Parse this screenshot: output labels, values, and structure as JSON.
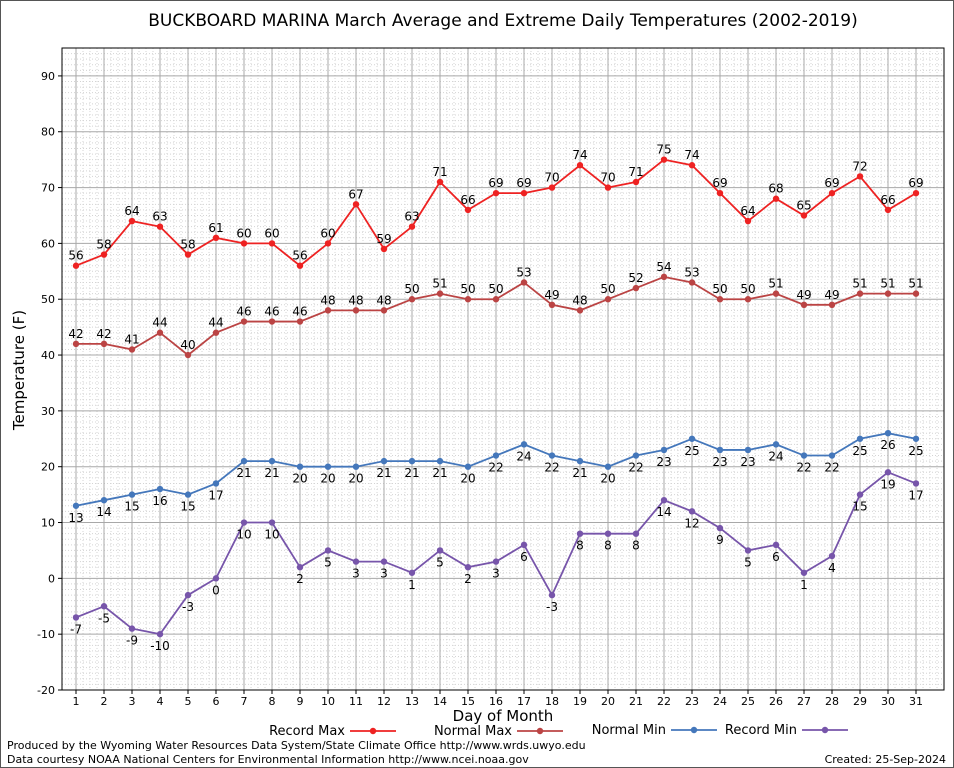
{
  "chart_data": {
    "type": "line",
    "title": "BUCKBOARD MARINA March Average and Extreme Daily Temperatures (2002-2019)",
    "xlabel": "Day of Month",
    "ylabel": "Temperature (F)",
    "ylim": [
      -20,
      95
    ],
    "yticks": [
      -20,
      -10,
      0,
      10,
      20,
      30,
      40,
      50,
      60,
      70,
      80,
      90
    ],
    "x": [
      1,
      2,
      3,
      4,
      5,
      6,
      7,
      8,
      9,
      10,
      11,
      12,
      13,
      14,
      15,
      16,
      17,
      18,
      19,
      20,
      21,
      22,
      23,
      24,
      25,
      26,
      27,
      28,
      29,
      30,
      31
    ],
    "grid": true,
    "legend_position": "bottom",
    "series": [
      {
        "name": "Record Max",
        "color": "#ee2222",
        "label_position": "above",
        "values": [
          56,
          58,
          64,
          63,
          58,
          61,
          60,
          60,
          56,
          60,
          67,
          59,
          63,
          71,
          66,
          69,
          69,
          70,
          74,
          70,
          71,
          75,
          74,
          69,
          64,
          68,
          65,
          69,
          72,
          66,
          69
        ]
      },
      {
        "name": "Normal Max",
        "color": "#bb4444",
        "label_position": "above",
        "values": [
          42,
          42,
          41,
          44,
          40,
          44,
          46,
          46,
          46,
          48,
          48,
          48,
          50,
          51,
          50,
          50,
          53,
          49,
          48,
          50,
          52,
          54,
          53,
          50,
          50,
          51,
          49,
          49,
          51,
          51,
          51
        ]
      },
      {
        "name": "Normal Min",
        "color": "#4477bb",
        "label_position": "below",
        "values": [
          13,
          14,
          15,
          16,
          15,
          17,
          21,
          21,
          20,
          20,
          20,
          21,
          21,
          21,
          20,
          22,
          24,
          22,
          21,
          20,
          22,
          23,
          25,
          23,
          23,
          24,
          22,
          22,
          25,
          26,
          25
        ]
      },
      {
        "name": "Record Min",
        "color": "#7755aa",
        "label_position": "below",
        "values": [
          -7,
          -5,
          -9,
          -10,
          -3,
          0,
          10,
          10,
          2,
          5,
          3,
          3,
          1,
          5,
          2,
          3,
          6,
          -3,
          8,
          8,
          8,
          14,
          12,
          9,
          5,
          6,
          1,
          4,
          15,
          19,
          17
        ]
      }
    ]
  },
  "footer": {
    "produced_by": "Produced by the Wyoming Water Resources Data System/State Climate Office http://www.wrds.uwyo.edu",
    "data_courtesy": "Data courtesy NOAA National Centers for Environmental Information http://www.ncei.noaa.gov",
    "created": "Created:  25-Sep-2024"
  }
}
